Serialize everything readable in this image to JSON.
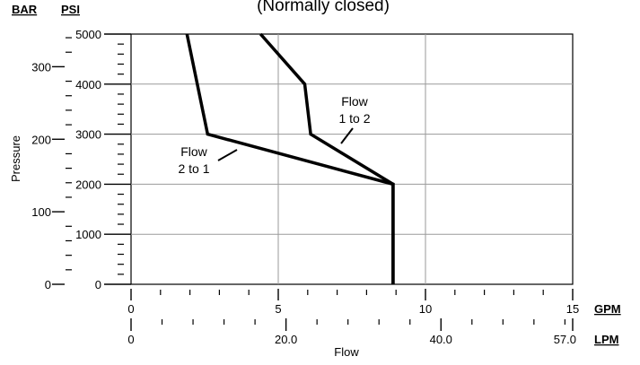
{
  "chart_data": {
    "type": "line",
    "title": "(Normally closed)",
    "xlabel": "Flow",
    "ylabel": "Pressure",
    "grid": true,
    "x_axes": [
      {
        "unit": "GPM",
        "range": [
          0,
          15
        ],
        "major_ticks": [
          0,
          5,
          10,
          15
        ],
        "tick_labels": [
          "0",
          "5",
          "10",
          "15"
        ]
      },
      {
        "unit": "LPM",
        "range": [
          0,
          57.0
        ],
        "major_ticks": [
          0,
          20.0,
          40.0,
          57.0
        ],
        "tick_labels": [
          "0",
          "20.0",
          "40.0",
          "57.0"
        ]
      }
    ],
    "y_axes": [
      {
        "unit": "PSI",
        "range": [
          0,
          5000
        ],
        "major_ticks": [
          0,
          1000,
          2000,
          3000,
          4000,
          5000
        ],
        "tick_labels": [
          "0",
          "1000",
          "2000",
          "3000",
          "4000",
          "5000"
        ]
      },
      {
        "unit": "BAR",
        "range": [
          0,
          345
        ],
        "major_ticks": [
          0,
          100,
          200,
          300
        ],
        "tick_labels": [
          "0",
          "100",
          "200",
          "300"
        ]
      }
    ],
    "series": [
      {
        "name": "Flow 1 to 2",
        "label_lines": [
          "Flow",
          "1 to 2"
        ],
        "color": "#000000",
        "points": [
          {
            "x": 4.4,
            "y": 5000
          },
          {
            "x": 5.9,
            "y": 4000
          },
          {
            "x": 6.1,
            "y": 3000
          },
          {
            "x": 8.9,
            "y": 2000
          },
          {
            "x": 8.9,
            "y": 0
          }
        ]
      },
      {
        "name": "Flow 2 to 1",
        "label_lines": [
          "Flow",
          "2 to 1"
        ],
        "color": "#000000",
        "points": [
          {
            "x": 1.9,
            "y": 5000
          },
          {
            "x": 2.6,
            "y": 3000
          },
          {
            "x": 8.9,
            "y": 2000
          },
          {
            "x": 8.9,
            "y": 0
          }
        ]
      }
    ]
  }
}
